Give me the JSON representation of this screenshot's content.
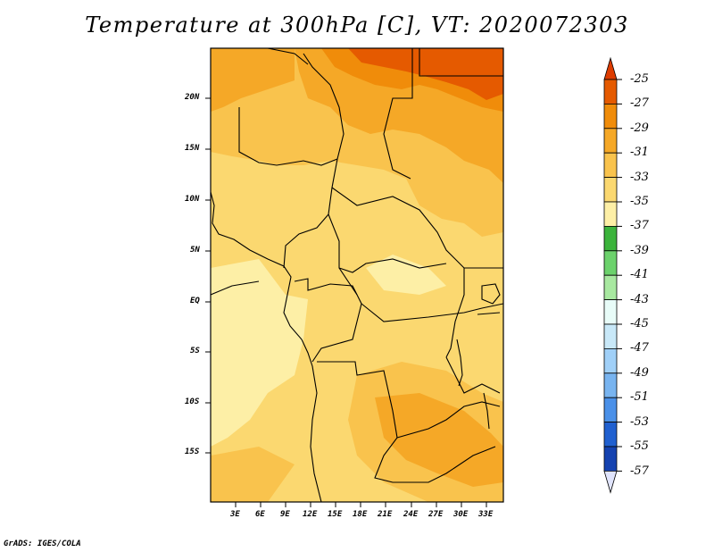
{
  "title": "Temperature at 300hPa [C], VT: 2020072303",
  "credit": "GrADS: IGES/COLA",
  "map": {
    "lat_labels": [
      "20N",
      "15N",
      "10N",
      "5N",
      "EQ",
      "5S",
      "10S",
      "15S"
    ],
    "lon_labels": [
      "3E",
      "6E",
      "9E",
      "12E",
      "15E",
      "18E",
      "21E",
      "24E",
      "27E",
      "30E",
      "33E"
    ]
  },
  "colorbar": {
    "labels": [
      "-25",
      "-27",
      "-29",
      "-31",
      "-33",
      "-35",
      "-37",
      "-39",
      "-41",
      "-43",
      "-45",
      "-47",
      "-49",
      "-51",
      "-53",
      "-55",
      "-57"
    ],
    "colors": [
      "#e55a00",
      "#f08c0a",
      "#f5a827",
      "#f9c34d",
      "#fbd870",
      "#fdefa6",
      "#3cb43c",
      "#6cd26c",
      "#a8e8a0",
      "#e8fcf8",
      "#c8e8f8",
      "#a0d0f8",
      "#78b4f0",
      "#4a90e8",
      "#2060d0",
      "#1442b0",
      "#0a1e78"
    ],
    "over_color": "#dd3c00",
    "under_color": "#e0e4fc"
  }
}
